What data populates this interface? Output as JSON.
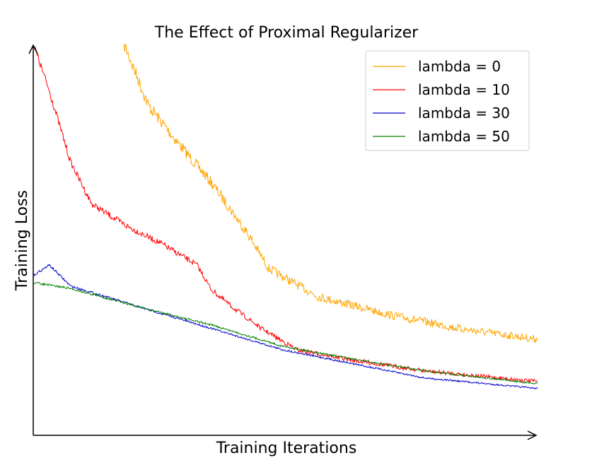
{
  "chart_data": {
    "type": "line",
    "title": "The Effect of Proximal Regularizer",
    "xlabel": "Training Iterations",
    "ylabel": "Training Loss",
    "xlim": [
      0,
      100
    ],
    "ylim": [
      0,
      100
    ],
    "grid": false,
    "legend_position": "top-right",
    "series": [
      {
        "name": "lambda = 0",
        "color": "#ffa500",
        "x": [
          18,
          22.9,
          28.5,
          35.5,
          42.5,
          46.7,
          56.5,
          70.5,
          84.6,
          100
        ],
        "y": [
          100,
          84.1,
          75,
          64.2,
          51.5,
          42.5,
          35.3,
          30.7,
          27.1,
          24.4
        ]
      },
      {
        "name": "lambda = 10",
        "color": "#ff0000",
        "x": [
          0,
          3.2,
          7.4,
          11.6,
          18.5,
          25.5,
          32.5,
          35.3,
          39.6,
          45.3,
          52.3,
          63.5,
          77.6,
          100
        ],
        "y": [
          100,
          87.9,
          69.8,
          59,
          53.4,
          48.8,
          43.4,
          37.1,
          32.5,
          27.1,
          21.7,
          19,
          16.3,
          13.6
        ]
      },
      {
        "name": "lambda = 30",
        "color": "#0000cc",
        "x": [
          0,
          3.2,
          7.4,
          14.4,
          21.4,
          28.5,
          35.5,
          42.5,
          49.5,
          63.5,
          77.6,
          100
        ],
        "y": [
          40.7,
          43.4,
          38,
          35.3,
          32.5,
          29.8,
          27.1,
          24.4,
          21.7,
          18.1,
          14.5,
          11.8
        ]
      },
      {
        "name": "lambda = 50",
        "color": "#008000",
        "x": [
          0,
          7.4,
          21.4,
          35.5,
          49.5,
          63.5,
          77.6,
          100
        ],
        "y": [
          38.9,
          37.4,
          32.5,
          28,
          22.6,
          19.3,
          16.3,
          13
        ]
      }
    ]
  }
}
